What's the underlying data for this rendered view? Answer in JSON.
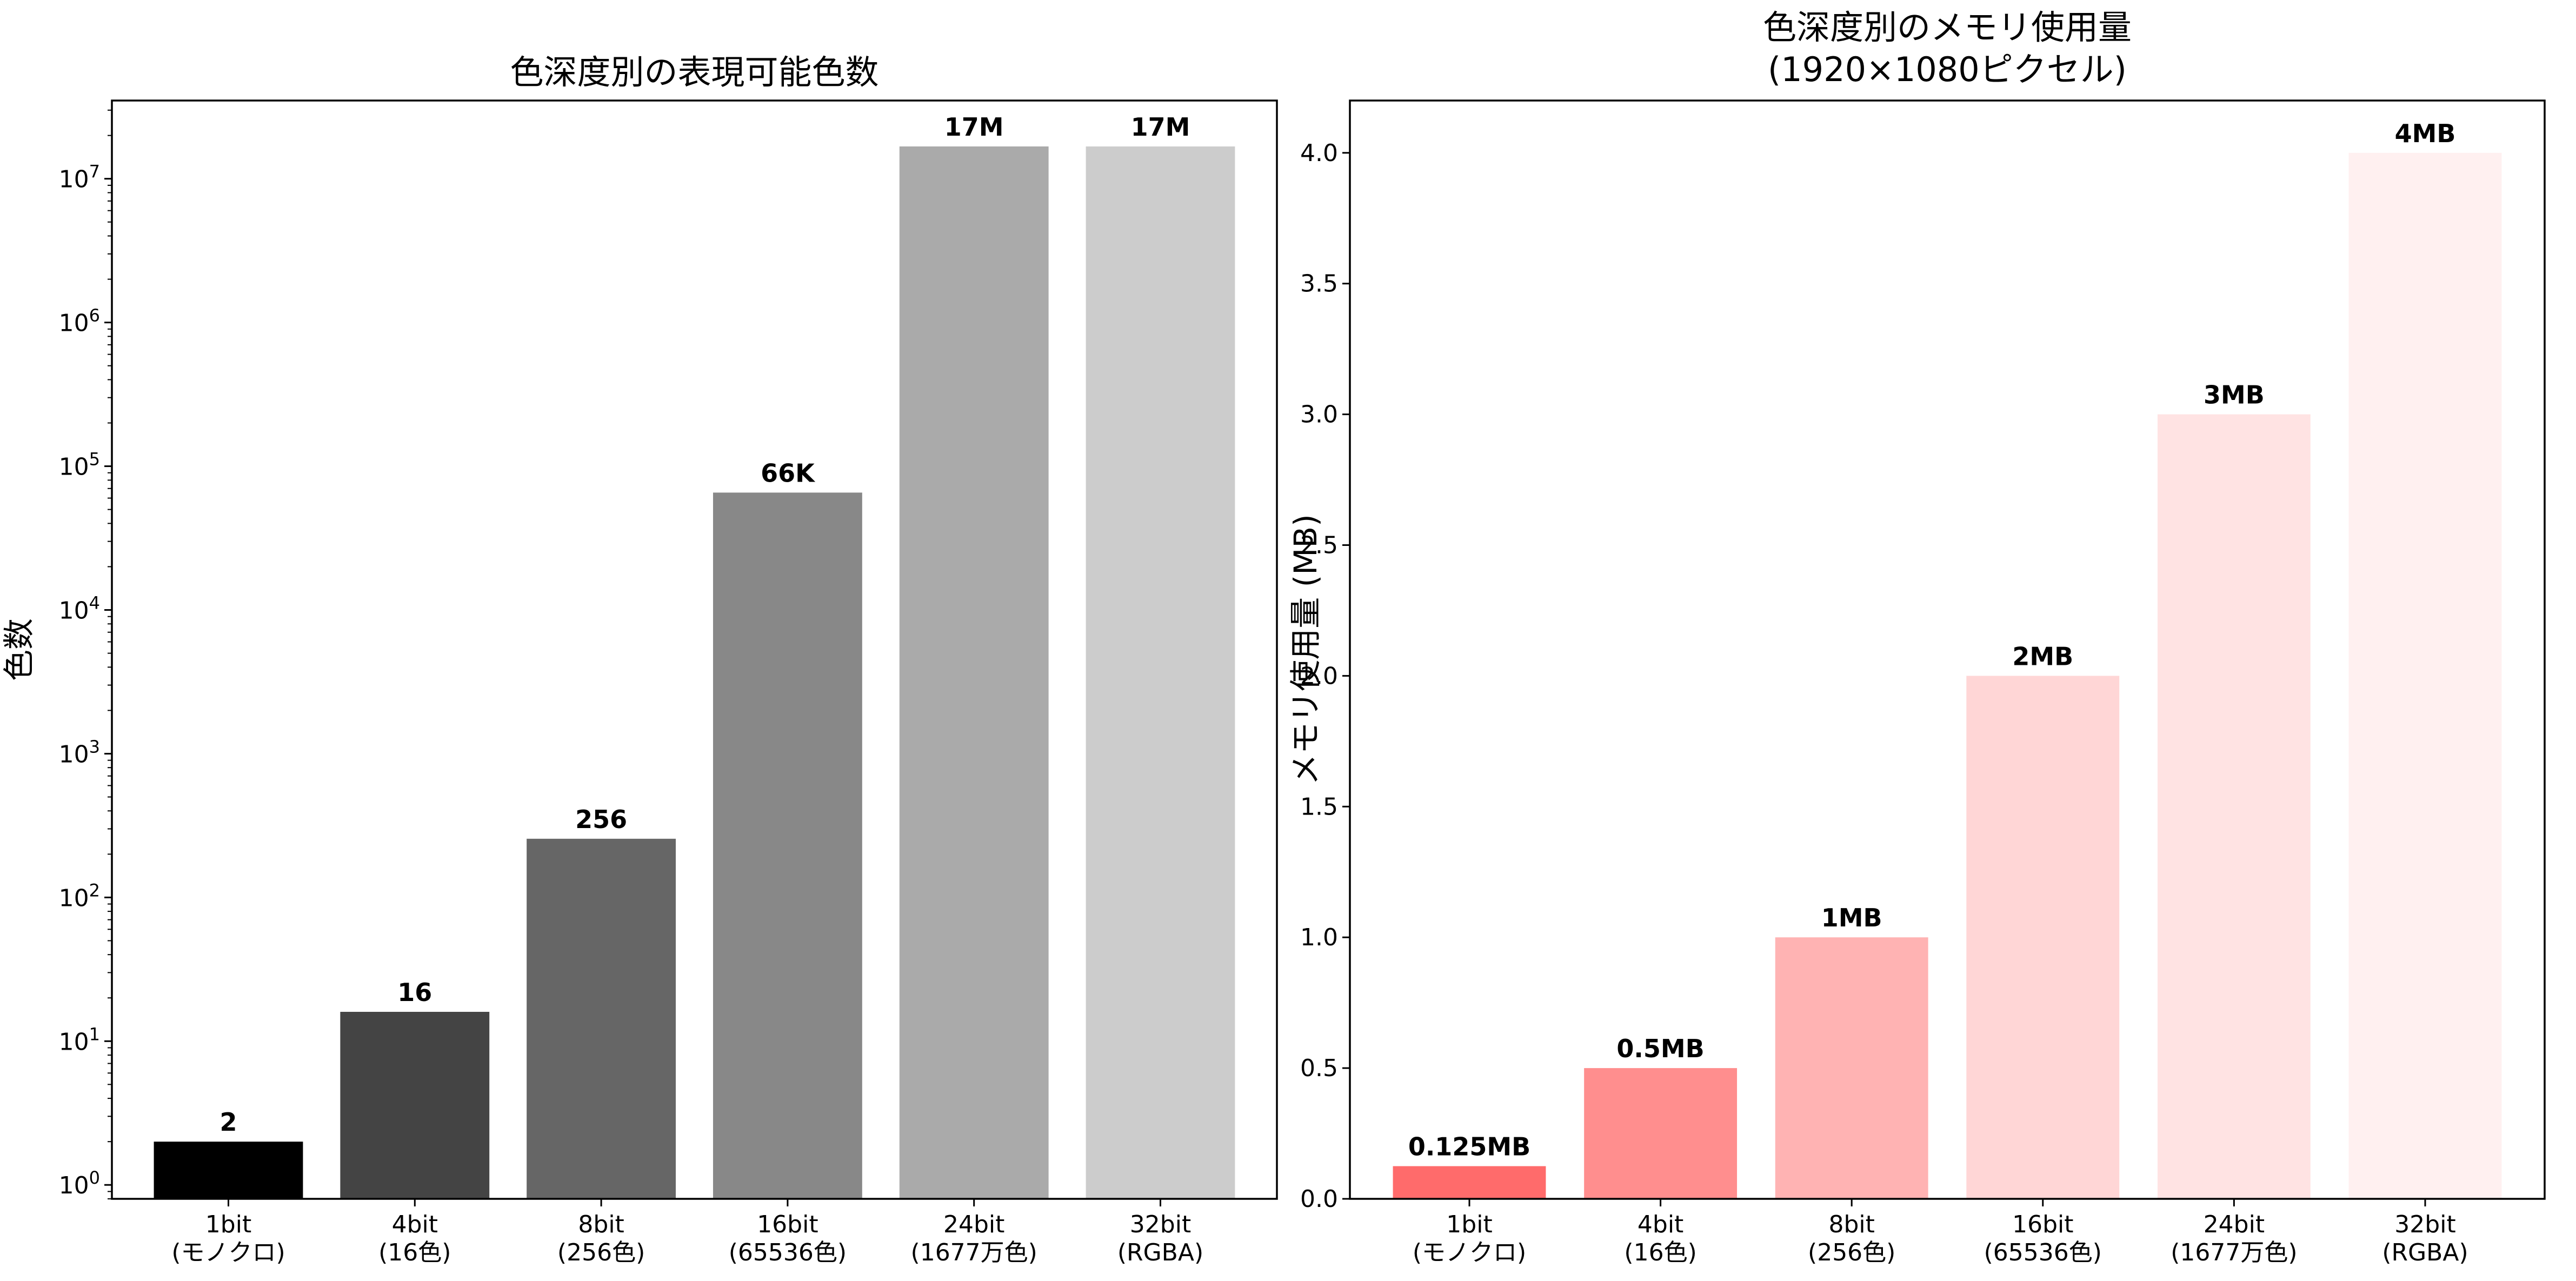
{
  "chart_data": [
    {
      "type": "bar",
      "title": "色深度別の表現可能色数",
      "xlabel": "",
      "ylabel": "色数",
      "yscale": "log",
      "ylim": [
        0.8,
        35000000
      ],
      "yticks": [
        1,
        10,
        100,
        1000,
        10000,
        100000,
        1000000,
        10000000
      ],
      "ytick_labels": [
        {
          "base": "10",
          "exp": "0"
        },
        {
          "base": "10",
          "exp": "1"
        },
        {
          "base": "10",
          "exp": "2"
        },
        {
          "base": "10",
          "exp": "3"
        },
        {
          "base": "10",
          "exp": "4"
        },
        {
          "base": "10",
          "exp": "5"
        },
        {
          "base": "10",
          "exp": "6"
        },
        {
          "base": "10",
          "exp": "7"
        }
      ],
      "categories": [
        [
          "1bit",
          "(モノクロ)"
        ],
        [
          "4bit",
          "(16色)"
        ],
        [
          "8bit",
          "(256色)"
        ],
        [
          "16bit",
          "(65536色)"
        ],
        [
          "24bit",
          "(1677万色)"
        ],
        [
          "32bit",
          "(RGBA)"
        ]
      ],
      "values": [
        2,
        16,
        256,
        65536,
        16777216,
        16777216
      ],
      "data_labels": [
        "2",
        "16",
        "256",
        "66K",
        "17M",
        "17M"
      ],
      "colors": [
        "#000000",
        "#444444",
        "#666666",
        "#888888",
        "#aaaaaa",
        "#cccccc"
      ],
      "grid": false
    },
    {
      "type": "bar",
      "title": [
        "色深度別のメモリ使用量",
        "(1920×1080ピクセル)"
      ],
      "xlabel": "",
      "ylabel": "メモリ使用量 (MB)",
      "yscale": "linear",
      "ylim": [
        0,
        4.2
      ],
      "yticks": [
        0.0,
        0.5,
        1.0,
        1.5,
        2.0,
        2.5,
        3.0,
        3.5,
        4.0
      ],
      "ytick_labels": [
        "0.0",
        "0.5",
        "1.0",
        "1.5",
        "2.0",
        "2.5",
        "3.0",
        "3.5",
        "4.0"
      ],
      "categories": [
        [
          "1bit",
          "(モノクロ)"
        ],
        [
          "4bit",
          "(16色)"
        ],
        [
          "8bit",
          "(256色)"
        ],
        [
          "16bit",
          "(65536色)"
        ],
        [
          "24bit",
          "(1677万色)"
        ],
        [
          "32bit",
          "(RGBA)"
        ]
      ],
      "values": [
        0.125,
        0.5,
        1.0,
        2.0,
        3.0,
        4.0
      ],
      "data_labels": [
        "0.125MB",
        "0.5MB",
        "1MB",
        "2MB",
        "3MB",
        "4MB"
      ],
      "colors": [
        "#ff6b6b",
        "#ff8e8e",
        "#ffb3b3",
        "#ffd6d6",
        "#ffe3e3",
        "#fff0f0"
      ],
      "grid": false
    }
  ]
}
